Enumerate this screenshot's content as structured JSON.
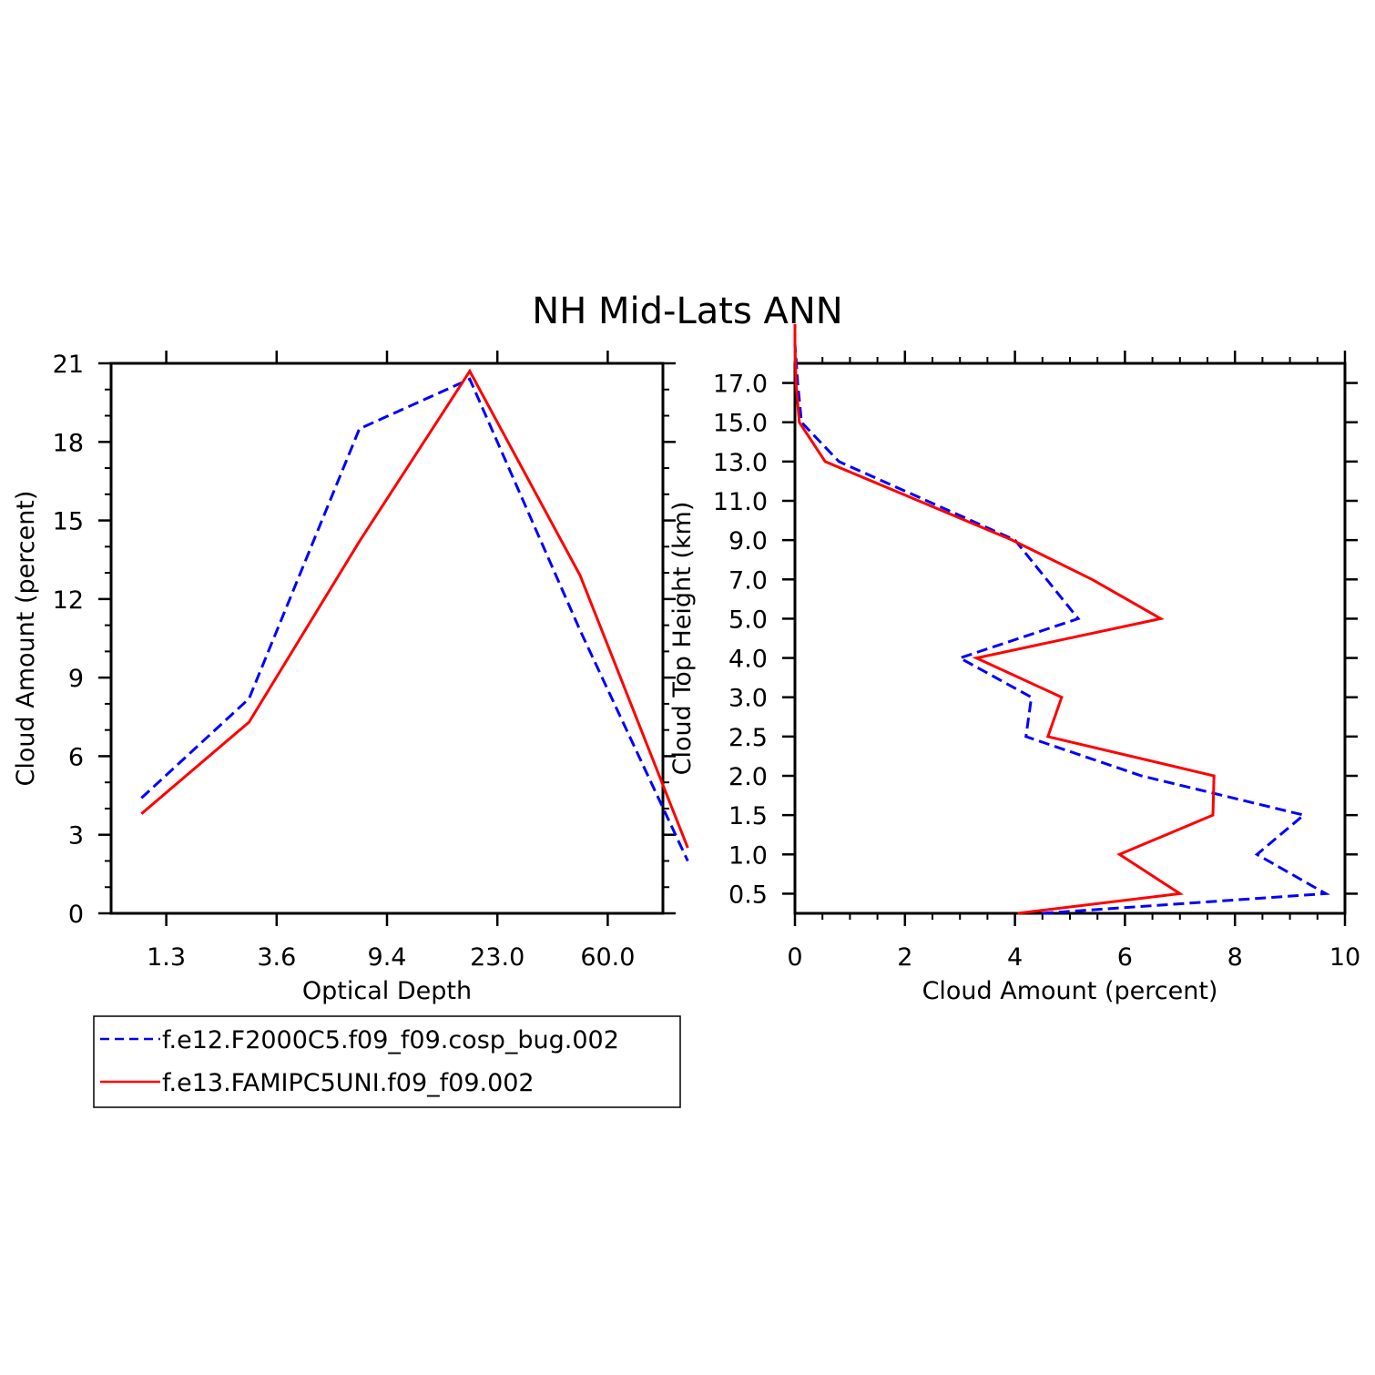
{
  "title": "NH Mid-Lats ANN",
  "colors": {
    "series_a": "#0000ff",
    "series_b": "#ff0000",
    "axis": "#000000"
  },
  "legend": {
    "entries": [
      {
        "label": "f.e12.F2000C5.f09_f09.cosp_bug.002",
        "style": "dashed",
        "color": "#0000ff"
      },
      {
        "label": "f.e13.FAMIPC5UNI.f09_f09.002",
        "style": "solid",
        "color": "#ff0000"
      }
    ]
  },
  "chart_data": [
    {
      "type": "line",
      "xlabel": "Optical Depth",
      "ylabel": "Cloud Amount (percent)",
      "x_tick_labels": [
        "1.3",
        "3.6",
        "9.4",
        "23.0",
        "60.0"
      ],
      "y_ticks": [
        0,
        3,
        6,
        9,
        12,
        15,
        18,
        21
      ],
      "ylim": [
        0,
        21
      ],
      "x_bins": 7,
      "series": [
        {
          "name": "f.e12.F2000C5.f09_f09.cosp_bug.002",
          "x": [
            0.55,
            2.5,
            4.5,
            6.5,
            8.5,
            10.45
          ],
          "values": [
            4.4,
            8.2,
            18.5,
            20.4,
            10.8,
            2.0
          ]
        },
        {
          "name": "f.e13.FAMIPC5UNI.f09_f09.002",
          "x": [
            0.55,
            2.5,
            4.5,
            6.5,
            8.5,
            10.45
          ],
          "values": [
            3.8,
            7.3,
            14.2,
            20.7,
            12.9,
            2.5
          ]
        }
      ]
    },
    {
      "type": "line",
      "xlabel": "Cloud Amount (percent)",
      "ylabel": "Cloud Top Height (km)",
      "x_ticks": [
        0,
        2,
        4,
        6,
        8,
        10
      ],
      "xlim": [
        0,
        10
      ],
      "y_tick_labels": [
        "0.5",
        "1.0",
        "1.5",
        "2.0",
        "2.5",
        "3.0",
        "4.0",
        "5.0",
        "7.0",
        "9.0",
        "11.0",
        "13.0",
        "15.0",
        "17.0"
      ],
      "y_range_levels": [
        0,
        14
      ],
      "series": [
        {
          "name": "f.e12.F2000C5.f09_f09.cosp_bug.002",
          "x": [
            4.5,
            9.65,
            8.4,
            9.25,
            6.3,
            4.2,
            4.3,
            3.0,
            5.15,
            4.0,
            0.8,
            0.12,
            0.05,
            0.0,
            0.0
          ],
          "level": [
            0.0,
            0.5,
            1.5,
            2.5,
            3.5,
            4.5,
            5.5,
            6.5,
            7.5,
            9.5,
            11.5,
            12.5,
            13.5,
            14.5,
            15.0
          ]
        },
        {
          "name": "f.e13.FAMIPC5UNI.f09_f09.002",
          "x": [
            4.05,
            7.0,
            5.9,
            7.6,
            7.62,
            4.6,
            4.85,
            3.3,
            6.65,
            5.4,
            3.95,
            0.55,
            0.08,
            0.02,
            0.0,
            0.0
          ],
          "level": [
            0.0,
            0.5,
            1.5,
            2.5,
            3.5,
            4.5,
            5.5,
            6.5,
            7.5,
            8.5,
            9.5,
            11.5,
            12.5,
            13.5,
            14.5,
            15.0
          ]
        }
      ]
    }
  ]
}
